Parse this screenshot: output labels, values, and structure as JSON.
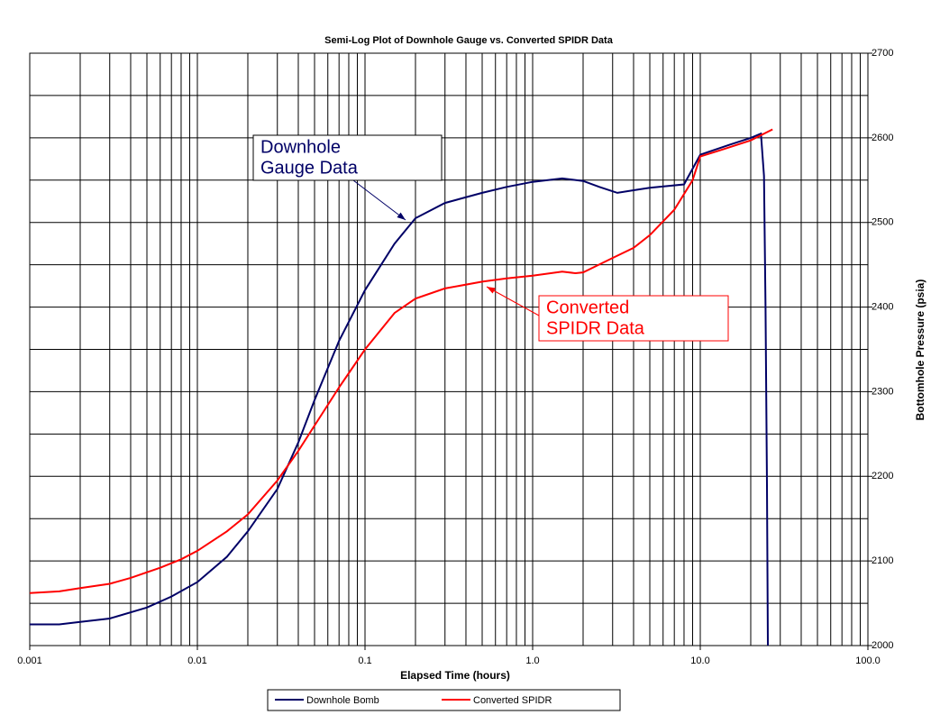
{
  "chart_data": {
    "type": "line",
    "title": "Semi-Log Plot of Downhole Gauge vs. Converted SPIDR Data",
    "x_label": "Elapsed Time (hours)",
    "y_label": "Bottomhole Pressure (psia)",
    "xscale": "log",
    "grid": true,
    "legend": "bottom",
    "xlim": [
      0.001,
      100
    ],
    "xticks": [
      0.001,
      0.01,
      0.1,
      {
        "value": 1,
        "label": "1.0"
      },
      {
        "value": 10,
        "label": "10.0"
      },
      {
        "value": 100,
        "label": "100.0"
      }
    ],
    "ylim": [
      2000,
      2700
    ],
    "yticks": [
      2000,
      2100,
      2200,
      2300,
      2400,
      2500,
      2600,
      2700
    ],
    "series": [
      {
        "name": "Downhole Bomb",
        "color": "#000066",
        "x": [
          0.001,
          0.0015,
          0.002,
          0.003,
          0.005,
          0.007,
          0.01,
          0.015,
          0.02,
          0.03,
          0.04,
          0.05,
          0.07,
          0.1,
          0.15,
          0.2,
          0.3,
          0.5,
          0.7,
          1.0,
          1.5,
          2.0,
          2.5,
          3.2,
          4.0,
          5.0,
          8.0,
          10,
          15,
          20,
          23,
          24,
          24.5,
          25,
          25.3
        ],
        "values": [
          2025,
          2025,
          2028,
          2032,
          2045,
          2058,
          2075,
          2105,
          2135,
          2185,
          2240,
          2290,
          2360,
          2420,
          2475,
          2505,
          2523,
          2535,
          2542,
          2548,
          2552,
          2549,
          2542,
          2535,
          2538,
          2541,
          2545,
          2580,
          2592,
          2600,
          2605,
          2555,
          2400,
          2190,
          2000
        ]
      },
      {
        "name": "Converted SPIDR",
        "color": "#ff0000",
        "x": [
          0.001,
          0.0015,
          0.002,
          0.003,
          0.004,
          0.006,
          0.008,
          0.01,
          0.015,
          0.02,
          0.03,
          0.04,
          0.05,
          0.07,
          0.1,
          0.15,
          0.2,
          0.3,
          0.5,
          0.7,
          1.0,
          1.5,
          1.8,
          2.0,
          3.0,
          4.0,
          5.0,
          7.0,
          9.0,
          10.0,
          13.0,
          20.0,
          27.0
        ],
        "values": [
          2062,
          2064,
          2068,
          2073,
          2080,
          2092,
          2102,
          2112,
          2135,
          2155,
          2195,
          2230,
          2260,
          2305,
          2350,
          2393,
          2410,
          2422,
          2430,
          2434,
          2437,
          2442,
          2440,
          2441,
          2458,
          2470,
          2485,
          2515,
          2550,
          2578,
          2585,
          2597,
          2610
        ]
      }
    ],
    "annotations": [
      {
        "text": [
          "Downhole",
          "Gauge Data"
        ],
        "color": "#000066"
      },
      {
        "text": [
          "Converted",
          "SPIDR Data"
        ],
        "color": "#ff0000"
      }
    ]
  }
}
